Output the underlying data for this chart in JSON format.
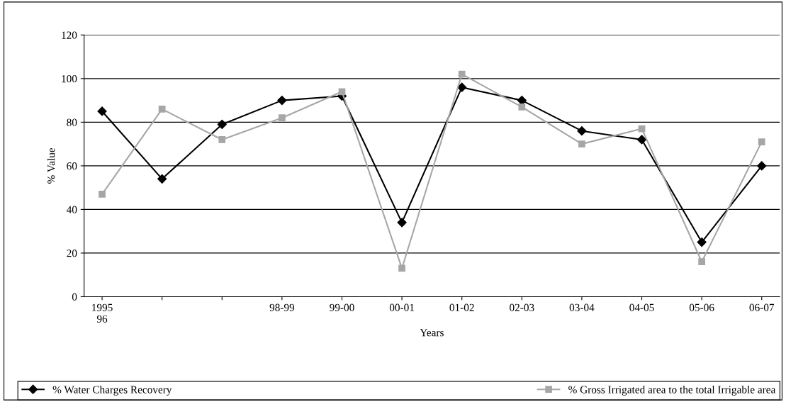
{
  "chart_data": {
    "type": "line",
    "xlabel": "Years",
    "ylabel": "% Value",
    "categories": [
      "1995\n96",
      null,
      null,
      "98-99",
      "99-00",
      "00-01",
      "01-02",
      "02-03",
      "03-04",
      "04-05",
      "05-06",
      "06-07"
    ],
    "series": [
      {
        "name": "% Water Charges Recovery",
        "color": "#000000",
        "marker": "diamond",
        "values": [
          85,
          54,
          79,
          90,
          92,
          34,
          96,
          90,
          76,
          72,
          25,
          60
        ]
      },
      {
        "name": "% Gross Irrigated area to the total Irrigable area",
        "color": "#a6a6a6",
        "marker": "square",
        "values": [
          47,
          86,
          72,
          82,
          94,
          13,
          102,
          87,
          70,
          77,
          16,
          71
        ]
      }
    ],
    "ylim": [
      0,
      120
    ],
    "yticks": [
      0,
      20,
      40,
      60,
      80,
      100,
      120
    ],
    "grid": "y",
    "legend": "bottom",
    "line_style": "solid"
  }
}
